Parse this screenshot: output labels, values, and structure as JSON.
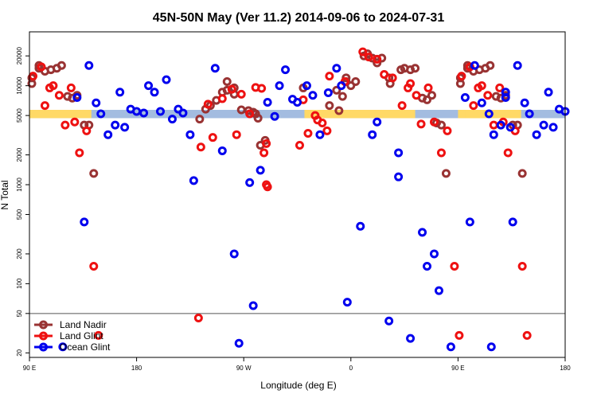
{
  "chart_data": {
    "type": "scatter",
    "title": "45N-50N May (Ver 11.2)   2014-09-06 to 2024-07-31",
    "xlabel": "Longitude (deg E)",
    "ylabel": "N Total",
    "xlim": [
      90,
      450
    ],
    "ylim": [
      18,
      35000
    ],
    "yscale": "log",
    "x_ticks": [
      {
        "value": 90,
        "label": "90 E"
      },
      {
        "value": 180,
        "label": "180"
      },
      {
        "value": 270,
        "label": "90 W"
      },
      {
        "value": 360,
        "label": "0"
      },
      {
        "value": 450,
        "label": "90 E"
      },
      {
        "value": 540,
        "label": "180"
      }
    ],
    "y_ticks": [
      {
        "value": 20,
        "label": "20"
      },
      {
        "value": 50,
        "label": "50"
      },
      {
        "value": 100,
        "label": "100"
      },
      {
        "value": 200,
        "label": "200"
      },
      {
        "value": 500,
        "label": "500"
      },
      {
        "value": 1000,
        "label": "1000"
      },
      {
        "value": 2000,
        "label": "2000"
      },
      {
        "value": 5000,
        "label": "5000"
      },
      {
        "value": 10000,
        "label": "10000"
      },
      {
        "value": 20000,
        "label": "20000"
      }
    ],
    "xlim_display": [
      90,
      540
    ],
    "reference_line": 50,
    "band": {
      "y_low": 4700,
      "y_high": 5700,
      "land_color": "#FFD966",
      "ocean_color": "#A3BCE0"
    },
    "land_ranges": [
      [
        90,
        142
      ],
      [
        321,
        414
      ],
      [
        456,
        503
      ]
    ],
    "legend_position": "bottom-left",
    "series": [
      {
        "name": "Land Nadir",
        "color": "#993333",
        "points": [
          [
            92,
            10500
          ],
          [
            92,
            12000
          ],
          [
            98,
            15000
          ],
          [
            98,
            16000
          ],
          [
            103,
            14000
          ],
          [
            108,
            14500
          ],
          [
            113,
            15000
          ],
          [
            117,
            16000
          ],
          [
            122,
            7800
          ],
          [
            126,
            7500
          ],
          [
            130,
            8000
          ],
          [
            136,
            4000
          ],
          [
            140,
            4000
          ],
          [
            144,
            1300
          ],
          [
            233,
            4600
          ],
          [
            238,
            5800
          ],
          [
            242,
            6300
          ],
          [
            247,
            7100
          ],
          [
            252,
            8600
          ],
          [
            256,
            9000
          ],
          [
            256,
            11000
          ],
          [
            262,
            8200
          ],
          [
            262,
            9500
          ],
          [
            268,
            5700
          ],
          [
            274,
            5600
          ],
          [
            278,
            5400
          ],
          [
            280,
            5200
          ],
          [
            282,
            4700
          ],
          [
            284,
            2500
          ],
          [
            288,
            2800
          ],
          [
            320,
            9500
          ],
          [
            342,
            6300
          ],
          [
            348,
            9000
          ],
          [
            350,
            5600
          ],
          [
            353,
            7800
          ],
          [
            356,
            11000
          ],
          [
            356,
            12000
          ],
          [
            360,
            10000
          ],
          [
            364,
            11000
          ],
          [
            371,
            20000
          ],
          [
            374,
            21000
          ],
          [
            378,
            19000
          ],
          [
            382,
            17000
          ],
          [
            386,
            19000
          ],
          [
            392,
            12000
          ],
          [
            393,
            10500
          ],
          [
            402,
            14500
          ],
          [
            405,
            15000
          ],
          [
            410,
            14500
          ],
          [
            414,
            15000
          ],
          [
            420,
            7500
          ],
          [
            424,
            7200
          ],
          [
            428,
            8000
          ],
          [
            432,
            4200
          ],
          [
            436,
            4000
          ],
          [
            440,
            1300
          ]
        ]
      },
      {
        "name": "Land Glint",
        "color": "#EE1111",
        "points": [
          [
            93,
            12500
          ],
          [
            100,
            15500
          ],
          [
            103,
            6300
          ],
          [
            107,
            9500
          ],
          [
            110,
            10000
          ],
          [
            115,
            8000
          ],
          [
            120,
            4000
          ],
          [
            125,
            9500
          ],
          [
            128,
            4300
          ],
          [
            132,
            2100
          ],
          [
            138,
            3500
          ],
          [
            144,
            150
          ],
          [
            148,
            30
          ],
          [
            232,
            45
          ],
          [
            234,
            2400
          ],
          [
            240,
            6500
          ],
          [
            244,
            3000
          ],
          [
            252,
            7400
          ],
          [
            260,
            9200
          ],
          [
            264,
            3200
          ],
          [
            268,
            8200
          ],
          [
            275,
            5200
          ],
          [
            280,
            9600
          ],
          [
            285,
            9400
          ],
          [
            287,
            2100
          ],
          [
            289,
            2600
          ],
          [
            289,
            1000
          ],
          [
            290,
            950
          ],
          [
            317,
            2500
          ],
          [
            320,
            7200
          ],
          [
            324,
            3300
          ],
          [
            330,
            5000
          ],
          [
            332,
            4500
          ],
          [
            336,
            4200
          ],
          [
            340,
            3500
          ],
          [
            342,
            12500
          ],
          [
            355,
            11000
          ],
          [
            370,
            22000
          ],
          [
            375,
            19500
          ],
          [
            382,
            18500
          ],
          [
            388,
            13000
          ],
          [
            395,
            12000
          ],
          [
            403,
            6300
          ],
          [
            408,
            9500
          ],
          [
            410,
            10500
          ],
          [
            415,
            8000
          ],
          [
            419,
            4100
          ],
          [
            425,
            9500
          ],
          [
            430,
            4300
          ],
          [
            436,
            2100
          ],
          [
            441,
            3500
          ],
          [
            447,
            150
          ],
          [
            451,
            30
          ]
        ]
      },
      {
        "name": "Ocean Glint",
        "color": "#0000EE",
        "points": [
          [
            118,
            23
          ],
          [
            130,
            7600
          ],
          [
            136,
            420
          ],
          [
            140,
            16000
          ],
          [
            146,
            6700
          ],
          [
            150,
            5200
          ],
          [
            156,
            3200
          ],
          [
            162,
            4000
          ],
          [
            166,
            8600
          ],
          [
            170,
            3800
          ],
          [
            175,
            5800
          ],
          [
            180,
            5500
          ],
          [
            186,
            5300
          ],
          [
            190,
            10000
          ],
          [
            195,
            8600
          ],
          [
            200,
            5500
          ],
          [
            205,
            11500
          ],
          [
            210,
            4600
          ],
          [
            215,
            5800
          ],
          [
            219,
            5300
          ],
          [
            225,
            3200
          ],
          [
            228,
            1100
          ],
          [
            246,
            15000
          ],
          [
            252,
            2200
          ],
          [
            262,
            200
          ],
          [
            266,
            25
          ],
          [
            275,
            1050
          ],
          [
            278,
            60
          ],
          [
            284,
            1400
          ],
          [
            290,
            6800
          ],
          [
            296,
            4900
          ],
          [
            300,
            10000
          ],
          [
            305,
            14500
          ],
          [
            311,
            7300
          ],
          [
            315,
            6800
          ],
          [
            323,
            10000
          ],
          [
            328,
            8000
          ],
          [
            334,
            3200
          ],
          [
            341,
            8500
          ],
          [
            348,
            15000
          ],
          [
            352,
            10000
          ],
          [
            357,
            65
          ],
          [
            368,
            380
          ],
          [
            378,
            3200
          ],
          [
            382,
            4300
          ],
          [
            392,
            42
          ],
          [
            400,
            2100
          ],
          [
            400,
            1200
          ],
          [
            410,
            28
          ],
          [
            420,
            330
          ],
          [
            424,
            150
          ],
          [
            430,
            200
          ],
          [
            434,
            85
          ],
          [
            444,
            23
          ],
          [
            456,
            7600
          ],
          [
            460,
            420
          ],
          [
            464,
            16000
          ],
          [
            470,
            6700
          ],
          [
            476,
            5200
          ],
          [
            480,
            3200
          ],
          [
            486,
            4000
          ],
          [
            490,
            8600
          ],
          [
            494,
            3800
          ]
        ]
      }
    ]
  }
}
